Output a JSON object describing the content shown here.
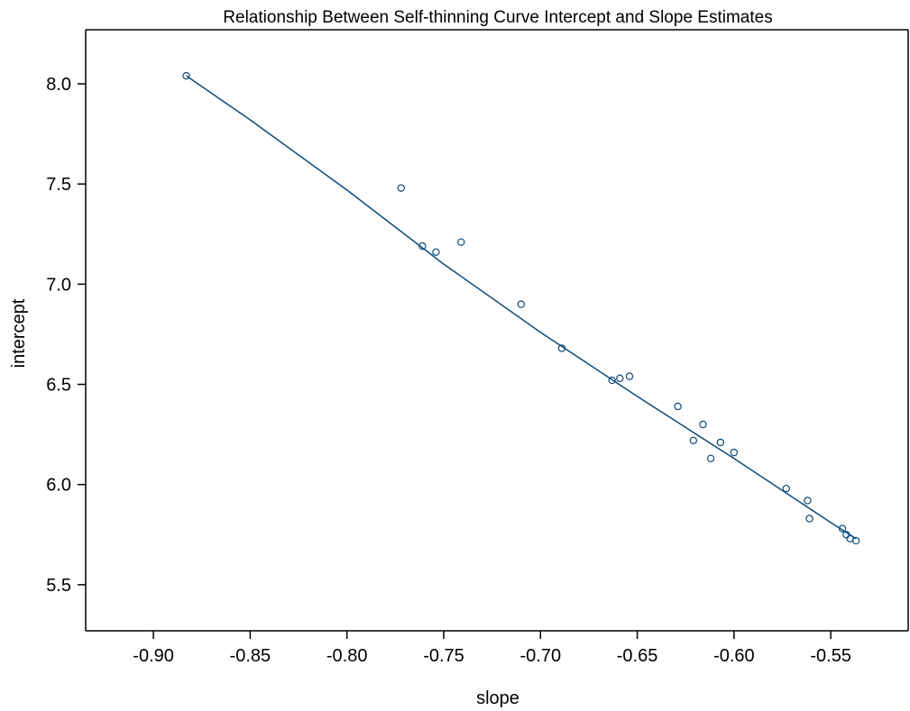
{
  "chart_data": {
    "type": "scatter",
    "title": "Relationship Between Self-thinning Curve Intercept and Slope Estimates",
    "xlabel": "slope",
    "ylabel": "intercept",
    "xlim": [
      -0.935,
      -0.51
    ],
    "ylim": [
      5.27,
      8.27
    ],
    "xticks": [
      -0.9,
      -0.85,
      -0.8,
      -0.75,
      -0.7,
      -0.65,
      -0.6,
      -0.55
    ],
    "xtick_labels": [
      "-0.90",
      "-0.85",
      "-0.80",
      "-0.75",
      "-0.70",
      "-0.65",
      "-0.60",
      "-0.55"
    ],
    "yticks": [
      5.5,
      6.0,
      6.5,
      7.0,
      7.5,
      8.0
    ],
    "ytick_labels": [
      "5.5",
      "6.0",
      "6.5",
      "7.0",
      "7.5",
      "8.0"
    ],
    "grid": false,
    "colors": {
      "points": "#0d4a7a",
      "line": "#0d4a7a",
      "axes": "#000000"
    },
    "points": [
      {
        "x": -0.883,
        "y": 8.04
      },
      {
        "x": -0.772,
        "y": 7.48
      },
      {
        "x": -0.761,
        "y": 7.19
      },
      {
        "x": -0.754,
        "y": 7.16
      },
      {
        "x": -0.741,
        "y": 7.21
      },
      {
        "x": -0.71,
        "y": 6.9
      },
      {
        "x": -0.689,
        "y": 6.68
      },
      {
        "x": -0.663,
        "y": 6.52
      },
      {
        "x": -0.659,
        "y": 6.53
      },
      {
        "x": -0.654,
        "y": 6.54
      },
      {
        "x": -0.629,
        "y": 6.39
      },
      {
        "x": -0.621,
        "y": 6.22
      },
      {
        "x": -0.616,
        "y": 6.3
      },
      {
        "x": -0.612,
        "y": 6.13
      },
      {
        "x": -0.607,
        "y": 6.21
      },
      {
        "x": -0.6,
        "y": 6.16
      },
      {
        "x": -0.573,
        "y": 5.98
      },
      {
        "x": -0.562,
        "y": 5.92
      },
      {
        "x": -0.561,
        "y": 5.83
      },
      {
        "x": -0.544,
        "y": 5.78
      },
      {
        "x": -0.542,
        "y": 5.75
      },
      {
        "x": -0.54,
        "y": 5.73
      },
      {
        "x": -0.537,
        "y": 5.72
      }
    ],
    "fit_line": [
      {
        "x": -0.883,
        "y": 8.04
      },
      {
        "x": -0.85,
        "y": 7.82
      },
      {
        "x": -0.8,
        "y": 7.47
      },
      {
        "x": -0.75,
        "y": 7.1
      },
      {
        "x": -0.7,
        "y": 6.76
      },
      {
        "x": -0.65,
        "y": 6.44
      },
      {
        "x": -0.6,
        "y": 6.13
      },
      {
        "x": -0.55,
        "y": 5.81
      },
      {
        "x": -0.537,
        "y": 5.73
      }
    ]
  }
}
